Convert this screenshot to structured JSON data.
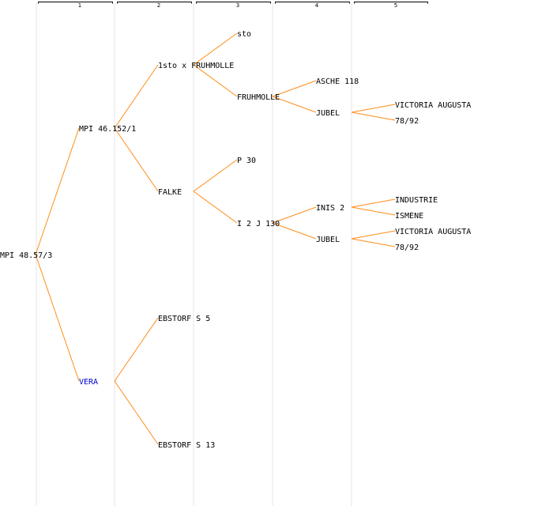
{
  "generation_headers": [
    "1",
    "2",
    "3",
    "4",
    "5"
  ],
  "nodes": {
    "root": {
      "label": "MPI 48.57/3"
    },
    "sire": {
      "label": "MPI 46.152/1"
    },
    "dam": {
      "label": "VERA"
    },
    "ss": {
      "label": "1sto x FRUHMOLLE"
    },
    "sd": {
      "label": "FALKE"
    },
    "ds": {
      "label": "EBSTORF S 5"
    },
    "dd": {
      "label": "EBSTORF S 13"
    },
    "sss": {
      "label": "sto"
    },
    "ssd": {
      "label": "FRUHMOLLE"
    },
    "sds": {
      "label": "P 30"
    },
    "sdd": {
      "label": "I 2 J 130"
    },
    "ssds": {
      "label": "ASCHE 118"
    },
    "ssdd": {
      "label": "JUBEL"
    },
    "sdds": {
      "label": "INIS 2"
    },
    "sddd": {
      "label": "JUBEL"
    },
    "ssdds": {
      "label": "VICTORIA AUGUSTA"
    },
    "ssddd": {
      "label": "78/92"
    },
    "sddss": {
      "label": "INDUSTRIE"
    },
    "sddsd": {
      "label": "ISMENE"
    },
    "sddds": {
      "label": "VICTORIA AUGUSTA"
    },
    "sdddd": {
      "label": "78/92"
    }
  },
  "colors": {
    "edge": "#ff8c1a",
    "highlight_label": "#0000cc"
  }
}
